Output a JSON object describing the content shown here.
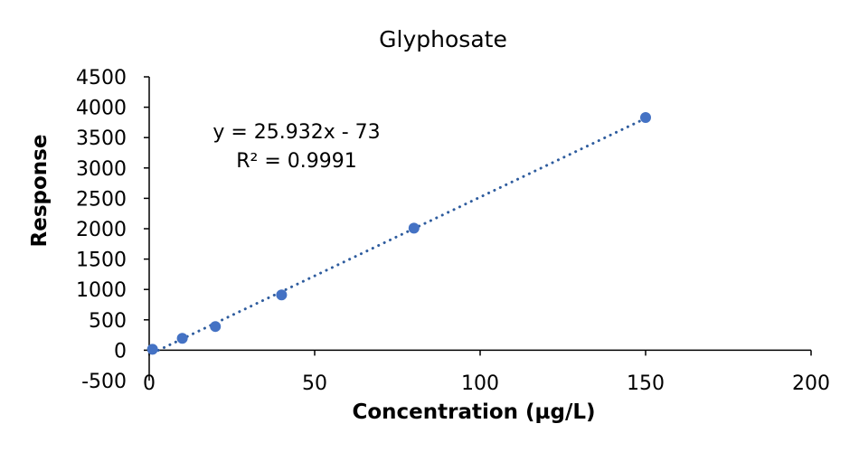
{
  "chart_data": {
    "type": "scatter",
    "title": "Glyphosate",
    "xlabel": "Concentration (µg/L)",
    "ylabel": "Response",
    "xlim": [
      0,
      200
    ],
    "ylim": [
      -500,
      4500
    ],
    "x_ticks": [
      0,
      50,
      100,
      150,
      200
    ],
    "y_ticks": [
      -500,
      0,
      500,
      1000,
      1500,
      2000,
      2500,
      3000,
      3500,
      4000,
      4500
    ],
    "grid": false,
    "legend": "none",
    "series": [
      {
        "name": "Glyphosate",
        "color": "#4472C4",
        "x": [
          1,
          10,
          20,
          40,
          80,
          150
        ],
        "y": [
          15,
          195,
          390,
          910,
          2010,
          3830
        ]
      }
    ],
    "trendline": {
      "type": "linear",
      "style": "dotted",
      "color": "#2E5C9E",
      "slope": 25.932,
      "intercept": -73,
      "equation": "y = 25.932x - 73",
      "r_squared": "R² = 0.9991"
    }
  }
}
